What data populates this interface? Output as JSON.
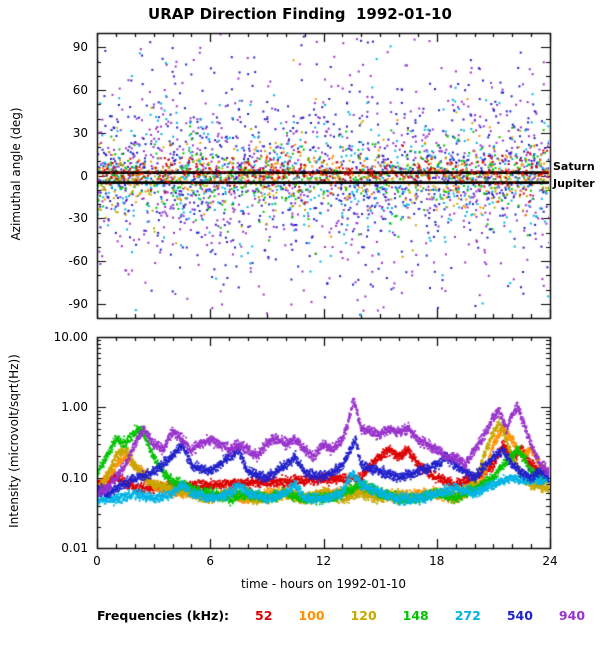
{
  "title": "URAP Direction Finding  1992-01-10",
  "legend": {
    "title": "Frequencies (kHz):",
    "items": [
      {
        "label": "52",
        "color": "#dd0000"
      },
      {
        "label": "100",
        "color": "#ff9100"
      },
      {
        "label": "120",
        "color": "#c8a800"
      },
      {
        "label": "148",
        "color": "#00c300"
      },
      {
        "label": "272",
        "color": "#00b4e6"
      },
      {
        "label": "540",
        "color": "#2222cc"
      },
      {
        "label": "940",
        "color": "#9933cc"
      }
    ]
  },
  "chart_data": [
    {
      "type": "scatter",
      "ylabel": "Azimuthal angle (deg)",
      "ylim": [
        -100,
        100
      ],
      "yticks": [
        90,
        60,
        30,
        0,
        -30,
        -60,
        -90
      ],
      "ytick_labels": [
        "90",
        "60",
        "30",
        "0",
        "-30",
        "-60",
        "-90"
      ],
      "xlim": [
        0,
        24
      ],
      "xticks": [
        0,
        6,
        12,
        18,
        24
      ],
      "grid": false,
      "reference_lines": [
        {
          "label": "Saturn",
          "y": 2,
          "color": "#000000"
        },
        {
          "label": "Jupiter",
          "y": -5,
          "color": "#000000"
        }
      ],
      "series": [
        {
          "name": "52",
          "color": "#dd0000",
          "n": 350,
          "y_center": 2,
          "y_spread": 4
        },
        {
          "name": "100",
          "color": "#ff9100",
          "n": 300,
          "y_center": 0,
          "y_spread": 8
        },
        {
          "name": "120",
          "color": "#c8a800",
          "n": 300,
          "y_center": -2,
          "y_spread": 10
        },
        {
          "name": "148",
          "color": "#00c300",
          "n": 450,
          "y_center": 0,
          "y_spread": 9
        },
        {
          "name": "272",
          "color": "#00b4e6",
          "n": 550,
          "y_center": -2,
          "y_spread": 18
        },
        {
          "name": "540",
          "color": "#2222cc",
          "n": 900,
          "y_center": 0,
          "y_spread": 30
        },
        {
          "name": "940",
          "color": "#9933cc",
          "n": 900,
          "y_center": 0,
          "y_spread": 32
        }
      ]
    },
    {
      "type": "line",
      "ylabel": "Intensity (microvolt/sqrt(Hz))",
      "yscale": "log",
      "ylim": [
        0.01,
        10
      ],
      "yticks": [
        10,
        1,
        0.1,
        0.01
      ],
      "ytick_labels": [
        "10.00",
        "1.00",
        "0.10",
        "0.01"
      ],
      "xlim": [
        0,
        24
      ],
      "xticks": [
        0,
        6,
        12,
        18,
        24
      ],
      "xtick_labels": [
        "0",
        "6",
        "12",
        "18",
        "24"
      ],
      "xlabel": "time - hours on 1992-01-10",
      "series": [
        {
          "name": "52",
          "color": "#dd0000",
          "x": [
            0,
            1,
            2,
            14,
            14.5,
            15,
            15.5,
            16,
            16.5,
            17,
            18,
            19,
            20,
            21,
            21.5,
            22,
            22.5,
            23,
            24
          ],
          "y": [
            0.08,
            0.1,
            0.07,
            0.1,
            0.15,
            0.2,
            0.25,
            0.2,
            0.25,
            0.15,
            0.1,
            0.08,
            0.1,
            0.15,
            0.3,
            0.2,
            0.25,
            0.15,
            0.1
          ]
        },
        {
          "name": "100",
          "color": "#ff9100",
          "x": [
            0,
            0.5,
            1,
            1.5,
            2,
            3,
            4,
            5,
            6,
            7,
            8,
            9,
            10,
            11,
            12,
            13,
            14,
            15,
            16,
            17,
            18,
            19,
            20,
            20.5,
            21,
            21.5,
            22,
            22.5,
            23,
            23.5,
            24
          ],
          "y": [
            0.07,
            0.1,
            0.15,
            0.2,
            0.15,
            0.08,
            0.06,
            0.06,
            0.05,
            0.06,
            0.05,
            0.06,
            0.06,
            0.05,
            0.06,
            0.06,
            0.07,
            0.06,
            0.05,
            0.06,
            0.06,
            0.05,
            0.07,
            0.1,
            0.3,
            0.5,
            0.35,
            0.2,
            0.25,
            0.15,
            0.1
          ]
        },
        {
          "name": "120",
          "color": "#c8a800",
          "x": [
            0,
            0.5,
            1,
            1.5,
            2,
            2.5,
            3,
            4,
            5,
            6,
            7,
            8,
            9,
            10,
            11,
            12,
            13,
            14,
            15,
            16,
            17,
            18,
            19,
            20,
            20.5,
            21,
            21.3,
            21.6,
            22,
            22.5,
            23,
            24
          ],
          "y": [
            0.06,
            0.1,
            0.2,
            0.25,
            0.15,
            0.1,
            0.08,
            0.07,
            0.06,
            0.05,
            0.06,
            0.05,
            0.05,
            0.06,
            0.05,
            0.06,
            0.05,
            0.06,
            0.05,
            0.06,
            0.05,
            0.06,
            0.06,
            0.08,
            0.2,
            0.45,
            0.6,
            0.4,
            0.2,
            0.1,
            0.08,
            0.07
          ]
        },
        {
          "name": "148",
          "color": "#00c300",
          "x": [
            0,
            0.5,
            1,
            1.5,
            2,
            2.3,
            2.6,
            3,
            3.5,
            4,
            5,
            6,
            7,
            8,
            9,
            10,
            11,
            12,
            13,
            14,
            15,
            16,
            17,
            18,
            19,
            20,
            21,
            21.5,
            22,
            22.3,
            22.6,
            23,
            23.5,
            24
          ],
          "y": [
            0.12,
            0.2,
            0.35,
            0.3,
            0.45,
            0.5,
            0.35,
            0.2,
            0.12,
            0.09,
            0.07,
            0.06,
            0.05,
            0.06,
            0.05,
            0.06,
            0.05,
            0.05,
            0.06,
            0.08,
            0.06,
            0.05,
            0.05,
            0.06,
            0.05,
            0.07,
            0.1,
            0.15,
            0.2,
            0.25,
            0.2,
            0.12,
            0.1,
            0.1
          ]
        },
        {
          "name": "272",
          "color": "#00b4e6",
          "x": [
            0,
            1,
            2,
            3,
            4,
            4.5,
            5,
            6,
            7,
            7.5,
            8,
            9,
            10,
            10.5,
            11,
            12,
            13,
            13.5,
            14,
            15,
            16,
            17,
            18,
            19,
            20,
            21,
            22,
            23,
            24
          ],
          "y": [
            0.05,
            0.05,
            0.06,
            0.05,
            0.06,
            0.08,
            0.06,
            0.05,
            0.06,
            0.08,
            0.06,
            0.05,
            0.06,
            0.08,
            0.05,
            0.05,
            0.06,
            0.12,
            0.08,
            0.06,
            0.05,
            0.05,
            0.06,
            0.07,
            0.06,
            0.08,
            0.1,
            0.09,
            0.1
          ]
        },
        {
          "name": "540",
          "color": "#2222cc",
          "x": [
            0,
            0.5,
            1,
            2,
            3,
            4,
            4.5,
            5,
            6,
            7,
            7.5,
            8,
            9,
            10,
            10.5,
            11,
            12,
            13,
            13.7,
            14,
            15,
            16,
            17,
            18,
            18.5,
            19,
            20,
            21,
            21.5,
            22,
            23,
            23.5,
            24
          ],
          "y": [
            0.07,
            0.06,
            0.07,
            0.1,
            0.12,
            0.2,
            0.3,
            0.15,
            0.12,
            0.2,
            0.25,
            0.12,
            0.1,
            0.15,
            0.2,
            0.12,
            0.1,
            0.15,
            0.35,
            0.15,
            0.12,
            0.1,
            0.12,
            0.15,
            0.2,
            0.15,
            0.1,
            0.2,
            0.25,
            0.15,
            0.1,
            0.12,
            0.1
          ]
        },
        {
          "name": "940",
          "color": "#9933cc",
          "x": [
            0,
            0.5,
            1,
            1.5,
            2,
            2.5,
            3,
            3.5,
            4,
            4.5,
            5,
            5.5,
            6,
            6.5,
            7,
            7.5,
            8,
            8.5,
            9,
            9.5,
            10,
            10.5,
            11,
            11.5,
            12,
            12.5,
            13,
            13.3,
            13.6,
            14,
            14.5,
            15,
            15.5,
            16,
            16.5,
            17,
            17.5,
            18,
            18.5,
            19,
            19.5,
            20,
            20.5,
            21,
            21.3,
            21.7,
            22,
            22.3,
            22.6,
            23,
            23.5,
            24
          ],
          "y": [
            0.06,
            0.07,
            0.1,
            0.15,
            0.3,
            0.5,
            0.3,
            0.25,
            0.45,
            0.35,
            0.25,
            0.3,
            0.35,
            0.3,
            0.25,
            0.3,
            0.25,
            0.2,
            0.3,
            0.35,
            0.3,
            0.35,
            0.25,
            0.2,
            0.3,
            0.25,
            0.35,
            0.6,
            1.3,
            0.5,
            0.45,
            0.4,
            0.5,
            0.45,
            0.5,
            0.35,
            0.3,
            0.25,
            0.2,
            0.2,
            0.15,
            0.25,
            0.4,
            0.7,
            0.9,
            0.5,
            0.8,
            1.0,
            0.6,
            0.3,
            0.15,
            0.12
          ]
        }
      ]
    }
  ]
}
